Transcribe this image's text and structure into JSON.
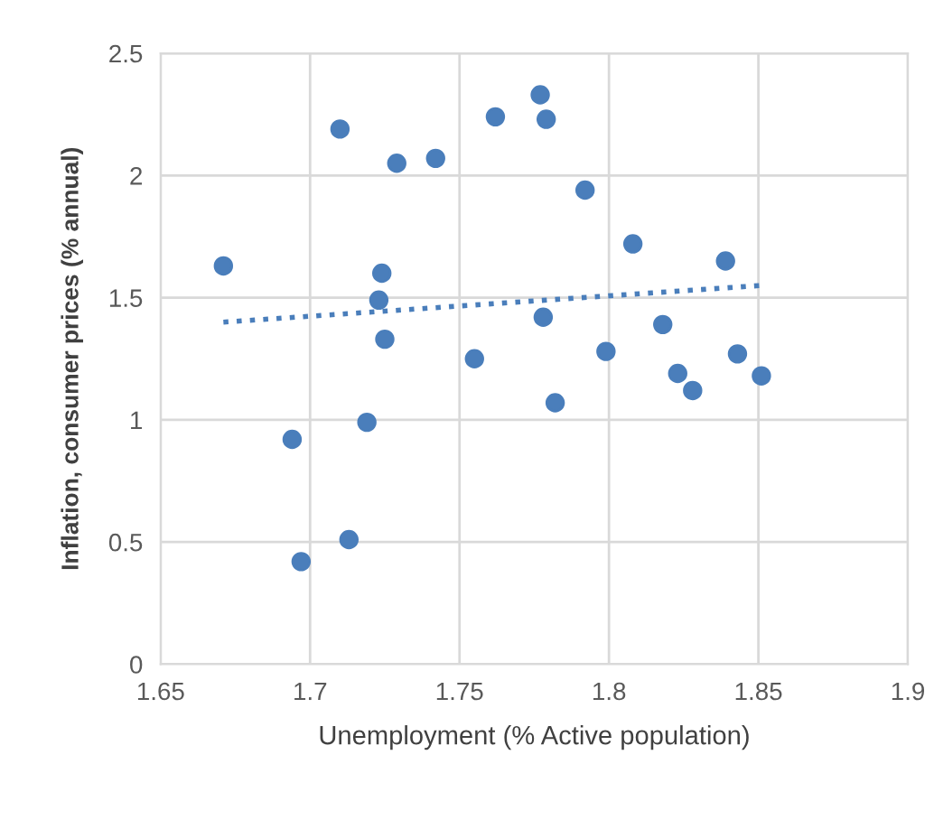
{
  "chart_data": {
    "type": "scatter",
    "xlabel": "Unemployment (% Active population)",
    "ylabel": "Inflation, consumer prices (% annual)",
    "xlim": [
      1.65,
      1.9
    ],
    "xticks": [
      1.65,
      1.7,
      1.75,
      1.8,
      1.85,
      1.9
    ],
    "ylim": [
      0,
      2.5
    ],
    "yticks": [
      0,
      0.5,
      1,
      1.5,
      2,
      2.5
    ],
    "grid": true,
    "legend": false,
    "series": [
      {
        "color": "#4a7ebb",
        "marker": "circle",
        "x": [
          1.671,
          1.694,
          1.697,
          1.71,
          1.713,
          1.719,
          1.723,
          1.724,
          1.725,
          1.729,
          1.742,
          1.755,
          1.762,
          1.777,
          1.779,
          1.778,
          1.782,
          1.792,
          1.799,
          1.808,
          1.818,
          1.823,
          1.828,
          1.839,
          1.843,
          1.851
        ],
        "values": [
          1.63,
          0.92,
          0.42,
          2.19,
          0.51,
          0.99,
          1.49,
          1.6,
          1.33,
          2.05,
          2.07,
          1.25,
          2.24,
          2.33,
          2.23,
          1.42,
          1.07,
          1.94,
          1.28,
          1.72,
          1.39,
          1.19,
          1.12,
          1.65,
          1.27,
          1.18
        ]
      },
      {
        "type": "line",
        "color": "#4a7ebb",
        "line_style": "dotted",
        "marker": "none",
        "x": [
          1.671,
          1.851
        ],
        "values": [
          1.4,
          1.55
        ]
      }
    ]
  }
}
